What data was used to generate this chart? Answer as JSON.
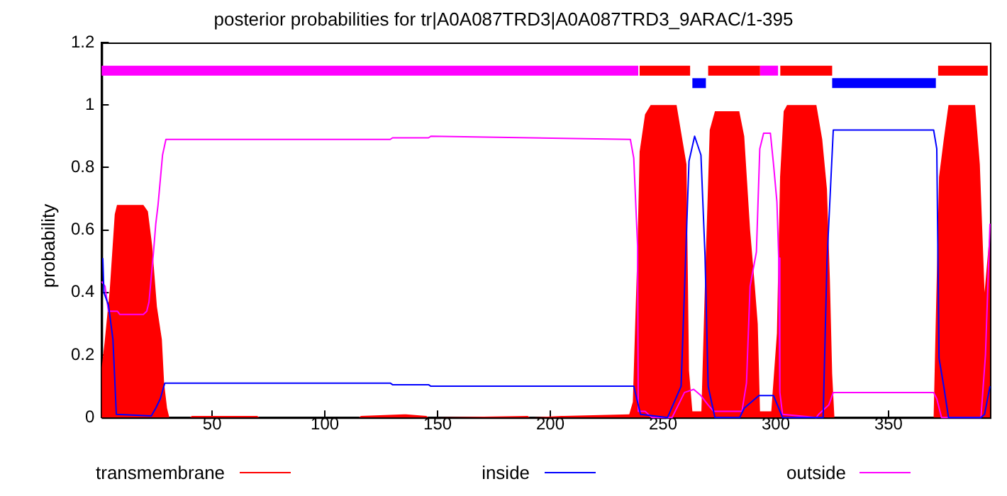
{
  "chart_data": {
    "type": "line",
    "title": "posterior probabilities for tr|A0A087TRD3|A0A087TRD3_9ARAC/1-395",
    "ylabel": "probability",
    "xlim": [
      1,
      395
    ],
    "xticks": [
      50,
      100,
      150,
      200,
      250,
      300,
      350
    ],
    "ylim": [
      0,
      1.2
    ],
    "yticks": [
      0,
      0.2,
      0.4,
      0.6,
      0.8,
      1,
      1.2
    ],
    "grid": false,
    "legend": "bottom",
    "marker": "none",
    "series": [
      {
        "name": "transmembrane",
        "type": "area",
        "color": "#ff0000",
        "x": [
          1,
          2.3,
          4.6,
          6.8,
          7.8,
          11,
          19.5,
          21.5,
          23.4,
          25.5,
          27.7,
          28.7,
          30,
          31,
          40,
          41,
          70,
          71,
          115,
          116,
          135,
          136,
          145,
          146,
          190,
          191,
          205,
          206,
          235,
          236.6,
          238.7,
          239.6,
          242,
          244.5,
          256,
          258.3,
          260.4,
          261.5,
          263,
          267,
          268.6,
          270.7,
          273,
          283.8,
          286,
          288.6,
          290.7,
          292,
          293,
          298,
          300.5,
          301.9,
          303.5,
          305,
          318,
          320.6,
          322.7,
          324,
          325,
          326,
          370,
          372.4,
          374.5,
          376.6,
          388.4,
          390.5,
          392.6,
          395
        ],
        "values": [
          0.16,
          0.24,
          0.41,
          0.65,
          0.68,
          0.68,
          0.68,
          0.66,
          0.55,
          0.355,
          0.25,
          0.11,
          0.03,
          0,
          0,
          0.005,
          0.005,
          0,
          0,
          0.005,
          0.01,
          0.01,
          0.005,
          0,
          0.005,
          0,
          0.005,
          0.005,
          0.01,
          0.05,
          0.55,
          0.85,
          0.97,
          1,
          1,
          0.9,
          0.81,
          0.15,
          0.02,
          0.02,
          0.43,
          0.92,
          0.98,
          0.98,
          0.9,
          0.6,
          0.42,
          0.3,
          0.02,
          0.02,
          0.27,
          0.77,
          0.98,
          1,
          1,
          0.89,
          0.73,
          0.44,
          0.14,
          0,
          0,
          0.77,
          0.89,
          1,
          1,
          0.81,
          0.4,
          0.6
        ]
      },
      {
        "name": "inside",
        "color": "#0000ff",
        "x": [
          1.5,
          2,
          4,
          6,
          7.5,
          23,
          25,
          27,
          29,
          129,
          130,
          146,
          147,
          237,
          240,
          252,
          258,
          261.5,
          264,
          266.8,
          268.6,
          270,
          273,
          284,
          286,
          292.5,
          299,
          303,
          321,
          322.7,
          325.5,
          370,
          371.4,
          372.4,
          374.5,
          376.6,
          391,
          392.6,
          395
        ],
        "values": [
          0.51,
          0.4,
          0.36,
          0.25,
          0.01,
          0.005,
          0.03,
          0.06,
          0.11,
          0.11,
          0.105,
          0.105,
          0.1,
          0.1,
          0.01,
          0,
          0.1,
          0.82,
          0.9,
          0.84,
          0.52,
          0.1,
          0,
          0,
          0.03,
          0.07,
          0.07,
          0,
          0,
          0.5,
          0.92,
          0.92,
          0.86,
          0.19,
          0.1,
          0,
          0,
          0.01,
          0.1
        ]
      },
      {
        "name": "outside",
        "color": "#ff00ff",
        "x": [
          1,
          2.5,
          4,
          8,
          9,
          19.5,
          21,
          22,
          23,
          24,
          25,
          26,
          27,
          28,
          29.5,
          129,
          130,
          146,
          147,
          235.5,
          237,
          238.7,
          239,
          242,
          245,
          254,
          259.5,
          263.6,
          266.8,
          270,
          272.4,
          285,
          287,
          288.6,
          291.4,
          292.9,
          294.6,
          297.6,
          299,
          300.5,
          301.3,
          301.8,
          303,
          318,
          319,
          323.5,
          325.5,
          370,
          371.4,
          373.5,
          391,
          393,
          395
        ],
        "values": [
          0.435,
          0.42,
          0.34,
          0.34,
          0.33,
          0.33,
          0.34,
          0.37,
          0.45,
          0.53,
          0.62,
          0.68,
          0.76,
          0.84,
          0.89,
          0.89,
          0.895,
          0.895,
          0.9,
          0.89,
          0.83,
          0.55,
          0.02,
          0.02,
          0,
          0,
          0.08,
          0.09,
          0.07,
          0.04,
          0.02,
          0.02,
          0.11,
          0.42,
          0.53,
          0.86,
          0.91,
          0.91,
          0.81,
          0.69,
          0.51,
          0.08,
          0.01,
          0,
          0.01,
          0.04,
          0.08,
          0.08,
          0.06,
          0,
          0,
          0.2,
          0.62
        ]
      },
      {
        "type": "line",
        "color": "#ff00ff",
        "x": [
          1,
          239
        ],
        "values": [
          1.11,
          1.11
        ]
      },
      {
        "type": "line",
        "color": "#ff0000",
        "x": [
          239.6,
          262
        ],
        "values": [
          1.11,
          1.11
        ]
      },
      {
        "type": "line",
        "color": "#0000ff",
        "x": [
          263,
          269
        ],
        "values": [
          1.07,
          1.07
        ]
      },
      {
        "type": "line",
        "color": "#ff0000",
        "x": [
          270,
          293
        ],
        "values": [
          1.11,
          1.11
        ]
      },
      {
        "type": "line",
        "color": "#ff00ff",
        "x": [
          293,
          301
        ],
        "values": [
          1.11,
          1.11
        ]
      },
      {
        "type": "line",
        "color": "#ff0000",
        "x": [
          302,
          325
        ],
        "values": [
          1.11,
          1.11
        ]
      },
      {
        "type": "line",
        "color": "#0000ff",
        "x": [
          325,
          371
        ],
        "values": [
          1.07,
          1.07
        ]
      },
      {
        "type": "line",
        "color": "#ff0000",
        "x": [
          372,
          394
        ],
        "values": [
          1.11,
          1.11
        ]
      }
    ]
  }
}
